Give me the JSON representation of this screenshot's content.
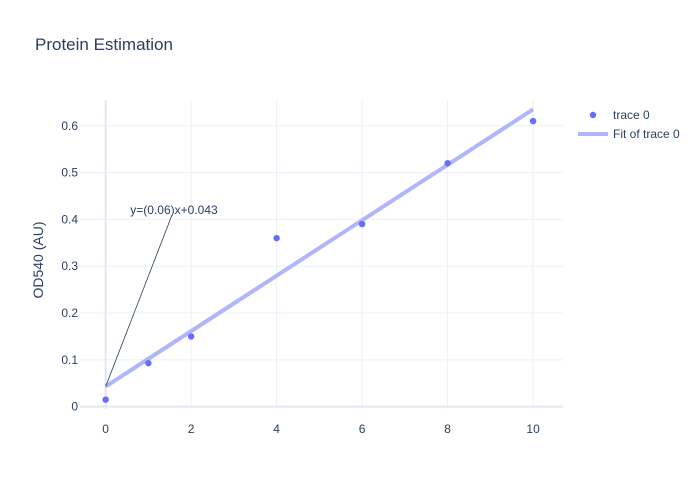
{
  "chart_data": {
    "type": "scatter",
    "title": "Protein Estimation",
    "xlabel": "",
    "ylabel": "OD540 (AU)",
    "xlim": [
      -0.6,
      10.7
    ],
    "ylim": [
      -0.005,
      0.655
    ],
    "x_ticks": [
      0,
      2,
      4,
      6,
      8,
      10
    ],
    "y_ticks": [
      0,
      0.1,
      0.2,
      0.3,
      0.4,
      0.5,
      0.6
    ],
    "x_tick_labels": [
      "0",
      "2",
      "4",
      "6",
      "8",
      "10"
    ],
    "y_tick_labels": [
      "0",
      "0.1",
      "0.2",
      "0.3",
      "0.4",
      "0.5",
      "0.6"
    ],
    "grid": true,
    "legend_position": "top-right",
    "series": [
      {
        "name": "trace 0",
        "mode": "markers",
        "color": "#636efa",
        "x": [
          0,
          1,
          2,
          4,
          6,
          8,
          10
        ],
        "y": [
          0.015,
          0.093,
          0.15,
          0.36,
          0.39,
          0.52,
          0.61
        ]
      },
      {
        "name": "Fit of trace 0",
        "mode": "line",
        "color": "#b0b5fc",
        "x": [
          0,
          10
        ],
        "y": [
          0.043,
          0.635
        ]
      }
    ],
    "annotations": [
      {
        "text": "y=(0.06)x+0.043",
        "x": 0,
        "y": 0.043
      }
    ]
  }
}
